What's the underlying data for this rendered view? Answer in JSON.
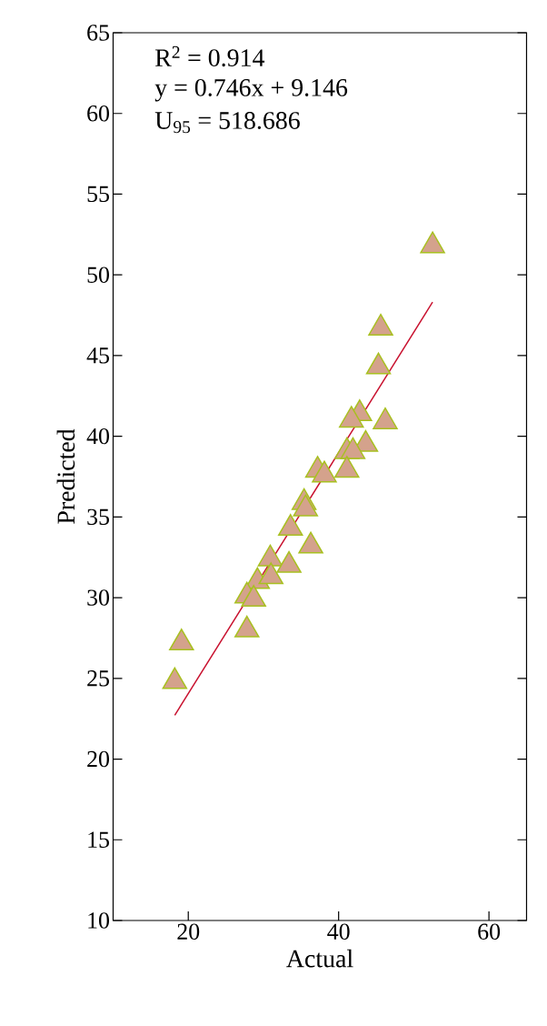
{
  "chart_data": {
    "type": "scatter",
    "xlabel": "Actual",
    "ylabel": "Predicted",
    "xlim": [
      10,
      65
    ],
    "ylim": [
      10,
      65
    ],
    "xticks": [
      20,
      40,
      60
    ],
    "yticks": [
      10,
      15,
      20,
      25,
      30,
      35,
      40,
      45,
      50,
      55,
      60,
      65
    ],
    "annotations": [
      "R$^{2}$ = 0.914",
      "y = 0.746x + 9.146",
      "U$_{95}$ = 518.686"
    ],
    "series": [
      {
        "marker": "triangle",
        "color": "#d4a28c",
        "x": [
          52.5,
          45.6,
          45.3,
          46.2,
          42.8,
          41.7,
          43.6,
          41.1,
          41.9,
          41.1,
          37.2,
          38.1,
          35.4,
          35.6,
          33.6,
          36.3,
          30.9,
          33.4,
          29.2,
          31.0,
          27.8,
          28.7,
          27.8,
          19.1,
          18.2
        ],
        "values": [
          51.8,
          46.7,
          44.3,
          40.9,
          41.4,
          41.0,
          39.5,
          39.05,
          39.05,
          37.9,
          37.9,
          37.6,
          35.9,
          35.5,
          34.3,
          33.2,
          32.4,
          32.0,
          31.0,
          31.3,
          30.1,
          29.9,
          28.0,
          27.2,
          24.8
        ]
      },
      {
        "type": "line",
        "marker": "none",
        "color": "#c8102e",
        "x": [
          18.2,
          52.5
        ],
        "values": [
          22.72,
          48.31
        ]
      }
    ]
  }
}
